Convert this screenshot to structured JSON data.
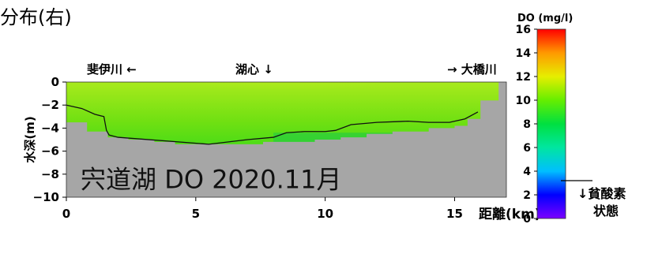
{
  "header": {
    "text": "分布(右)"
  },
  "chart_data": {
    "type": "heatmap",
    "title": "宍道湖 DO 2020.11月",
    "xlabel": "距離(km)",
    "ylabel": "水深(m)",
    "xlim": [
      0,
      17
    ],
    "ylim": [
      -10,
      0
    ],
    "x_ticks": [
      0,
      5,
      10,
      15
    ],
    "y_ticks": [
      0,
      -2,
      -4,
      -6,
      -8,
      -10
    ],
    "top_labels": {
      "left": "斐伊川 ←",
      "center": "湖心 ↓",
      "right": "→ 大橋川"
    },
    "colorbar": {
      "label": "DO (mg/l)",
      "range": [
        0,
        16
      ],
      "ticks": [
        16,
        14,
        12,
        10,
        8,
        6,
        4,
        2,
        0
      ],
      "stops": [
        {
          "value": 0,
          "color": "#7a00ff"
        },
        {
          "value": 2,
          "color": "#0000ff"
        },
        {
          "value": 4,
          "color": "#00bfff"
        },
        {
          "value": 6,
          "color": "#00e6a0"
        },
        {
          "value": 8,
          "color": "#00e040"
        },
        {
          "value": 10,
          "color": "#66ee00"
        },
        {
          "value": 12,
          "color": "#e6ee00"
        },
        {
          "value": 14,
          "color": "#ff9900"
        },
        {
          "value": 16,
          "color": "#ff0000"
        }
      ],
      "annotation": {
        "value": 3.2,
        "label_line1": "↓貧酸素",
        "label_line2": "状態"
      }
    },
    "bottom_profile": [
      {
        "x": 0,
        "y": -3.5
      },
      {
        "x": 0.8,
        "y": -3.5
      },
      {
        "x": 0.8,
        "y": -4.3
      },
      {
        "x": 1.6,
        "y": -4.3
      },
      {
        "x": 1.6,
        "y": -4.8
      },
      {
        "x": 2.4,
        "y": -4.8
      },
      {
        "x": 2.4,
        "y": -5.0
      },
      {
        "x": 3.4,
        "y": -5.0
      },
      {
        "x": 3.4,
        "y": -5.2
      },
      {
        "x": 4.2,
        "y": -5.2
      },
      {
        "x": 4.2,
        "y": -5.4
      },
      {
        "x": 7.6,
        "y": -5.4
      },
      {
        "x": 7.6,
        "y": -5.2
      },
      {
        "x": 9.6,
        "y": -5.2
      },
      {
        "x": 9.6,
        "y": -5.0
      },
      {
        "x": 10.6,
        "y": -5.0
      },
      {
        "x": 10.6,
        "y": -4.8
      },
      {
        "x": 11.6,
        "y": -4.8
      },
      {
        "x": 11.6,
        "y": -4.5
      },
      {
        "x": 12.6,
        "y": -4.5
      },
      {
        "x": 12.6,
        "y": -4.3
      },
      {
        "x": 14.0,
        "y": -4.3
      },
      {
        "x": 14.0,
        "y": -4.0
      },
      {
        "x": 15.0,
        "y": -4.0
      },
      {
        "x": 15.0,
        "y": -3.8
      },
      {
        "x": 15.5,
        "y": -3.8
      },
      {
        "x": 15.5,
        "y": -3.2
      },
      {
        "x": 16.0,
        "y": -3.2
      },
      {
        "x": 16.0,
        "y": -1.6
      },
      {
        "x": 16.7,
        "y": -1.6
      },
      {
        "x": 16.7,
        "y": 0
      },
      {
        "x": 17,
        "y": 0
      }
    ],
    "contour_4mg": [
      {
        "x": 0,
        "y": -2.0
      },
      {
        "x": 0.6,
        "y": -2.3
      },
      {
        "x": 1.1,
        "y": -2.8
      },
      {
        "x": 1.45,
        "y": -3.0
      },
      {
        "x": 1.5,
        "y": -3.6
      },
      {
        "x": 1.55,
        "y": -4.2
      },
      {
        "x": 1.65,
        "y": -4.6
      },
      {
        "x": 2.0,
        "y": -4.8
      },
      {
        "x": 5.5,
        "y": -5.4
      },
      {
        "x": 7.0,
        "y": -5.0
      },
      {
        "x": 8.0,
        "y": -4.8
      },
      {
        "x": 8.5,
        "y": -4.4
      },
      {
        "x": 9.2,
        "y": -4.3
      },
      {
        "x": 10.0,
        "y": -4.3
      },
      {
        "x": 10.4,
        "y": -4.2
      },
      {
        "x": 11.0,
        "y": -3.7
      },
      {
        "x": 12.0,
        "y": -3.5
      },
      {
        "x": 13.2,
        "y": -3.4
      },
      {
        "x": 14.0,
        "y": -3.5
      },
      {
        "x": 14.8,
        "y": -3.5
      },
      {
        "x": 15.4,
        "y": -3.2
      },
      {
        "x": 15.9,
        "y": -2.6
      }
    ],
    "do_field": {
      "surface": 10.4,
      "deep": 8.2,
      "hotspot_x": 8.5
    }
  }
}
